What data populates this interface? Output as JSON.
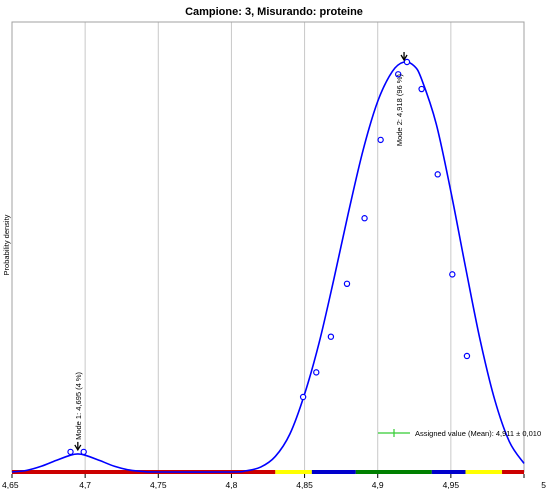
{
  "chart_data": {
    "type": "line",
    "title": "Campione: 3, Misurando: proteine",
    "ylabel": "Probability density",
    "xlabel": "",
    "xlim": [
      4.65,
      5.0
    ],
    "x_ticks": [
      "4,65",
      "4,7",
      "4,75",
      "4,8",
      "4,85",
      "4,9",
      "4,95",
      "5"
    ],
    "x_tick_values": [
      4.65,
      4.7,
      4.75,
      4.8,
      4.85,
      4.9,
      4.95,
      5.0
    ],
    "grid": "vertical",
    "series": [
      {
        "color": "#0000ff",
        "curve": [
          [
            4.65,
            0.0
          ],
          [
            4.66,
            0.004
          ],
          [
            4.67,
            0.014
          ],
          [
            4.68,
            0.028
          ],
          [
            4.69,
            0.041
          ],
          [
            4.695,
            0.044
          ],
          [
            4.7,
            0.041
          ],
          [
            4.71,
            0.028
          ],
          [
            4.72,
            0.014
          ],
          [
            4.73,
            0.005
          ],
          [
            4.74,
            0.001
          ],
          [
            4.75,
            0.0
          ],
          [
            4.8,
            0.0
          ],
          [
            4.81,
            0.003
          ],
          [
            4.82,
            0.012
          ],
          [
            4.83,
            0.038
          ],
          [
            4.84,
            0.093
          ],
          [
            4.85,
            0.19
          ],
          [
            4.86,
            0.316
          ],
          [
            4.87,
            0.47
          ],
          [
            4.88,
            0.633
          ],
          [
            4.89,
            0.785
          ],
          [
            4.9,
            0.904
          ],
          [
            4.91,
            0.977
          ],
          [
            4.918,
            1.0
          ],
          [
            4.925,
            0.99
          ],
          [
            4.93,
            0.958
          ],
          [
            4.94,
            0.849
          ],
          [
            4.95,
            0.684
          ],
          [
            4.96,
            0.5
          ],
          [
            4.97,
            0.322
          ],
          [
            4.98,
            0.176
          ],
          [
            4.99,
            0.074
          ],
          [
            5.0,
            0.021
          ]
        ],
        "points": [
          [
            4.69,
            0.049
          ],
          [
            4.699,
            0.049
          ],
          [
            4.849,
            0.183
          ],
          [
            4.858,
            0.243
          ],
          [
            4.868,
            0.33
          ],
          [
            4.879,
            0.459
          ],
          [
            4.891,
            0.619
          ],
          [
            4.902,
            0.81
          ],
          [
            4.914,
            0.97
          ],
          [
            4.92,
            1.0
          ],
          [
            4.93,
            0.934
          ],
          [
            4.941,
            0.726
          ],
          [
            4.951,
            0.482
          ],
          [
            4.961,
            0.283
          ]
        ]
      }
    ],
    "annotations": [
      {
        "text": "Mode 1: 4,695  (4 %)",
        "x": 4.695,
        "y": 0.049
      },
      {
        "text": "Mode 2: 4,918  (96 %)",
        "x": 4.918,
        "y": 1.0
      }
    ],
    "legend": {
      "label": "Assigned value (Mean): 4,911 ± 0,010",
      "placement": "bottom-right"
    },
    "axis_band": [
      {
        "from": 4.65,
        "to": 4.83,
        "color": "#cc0000"
      },
      {
        "from": 4.83,
        "to": 4.855,
        "color": "#ffff00"
      },
      {
        "from": 4.855,
        "to": 4.885,
        "color": "#0000cc"
      },
      {
        "from": 4.885,
        "to": 4.937,
        "color": "#008000"
      },
      {
        "from": 4.937,
        "to": 4.96,
        "color": "#0000cc"
      },
      {
        "from": 4.96,
        "to": 4.985,
        "color": "#ffff00"
      },
      {
        "from": 4.985,
        "to": 5.0,
        "color": "#cc0000"
      }
    ],
    "legend_color": "#33cc33"
  }
}
